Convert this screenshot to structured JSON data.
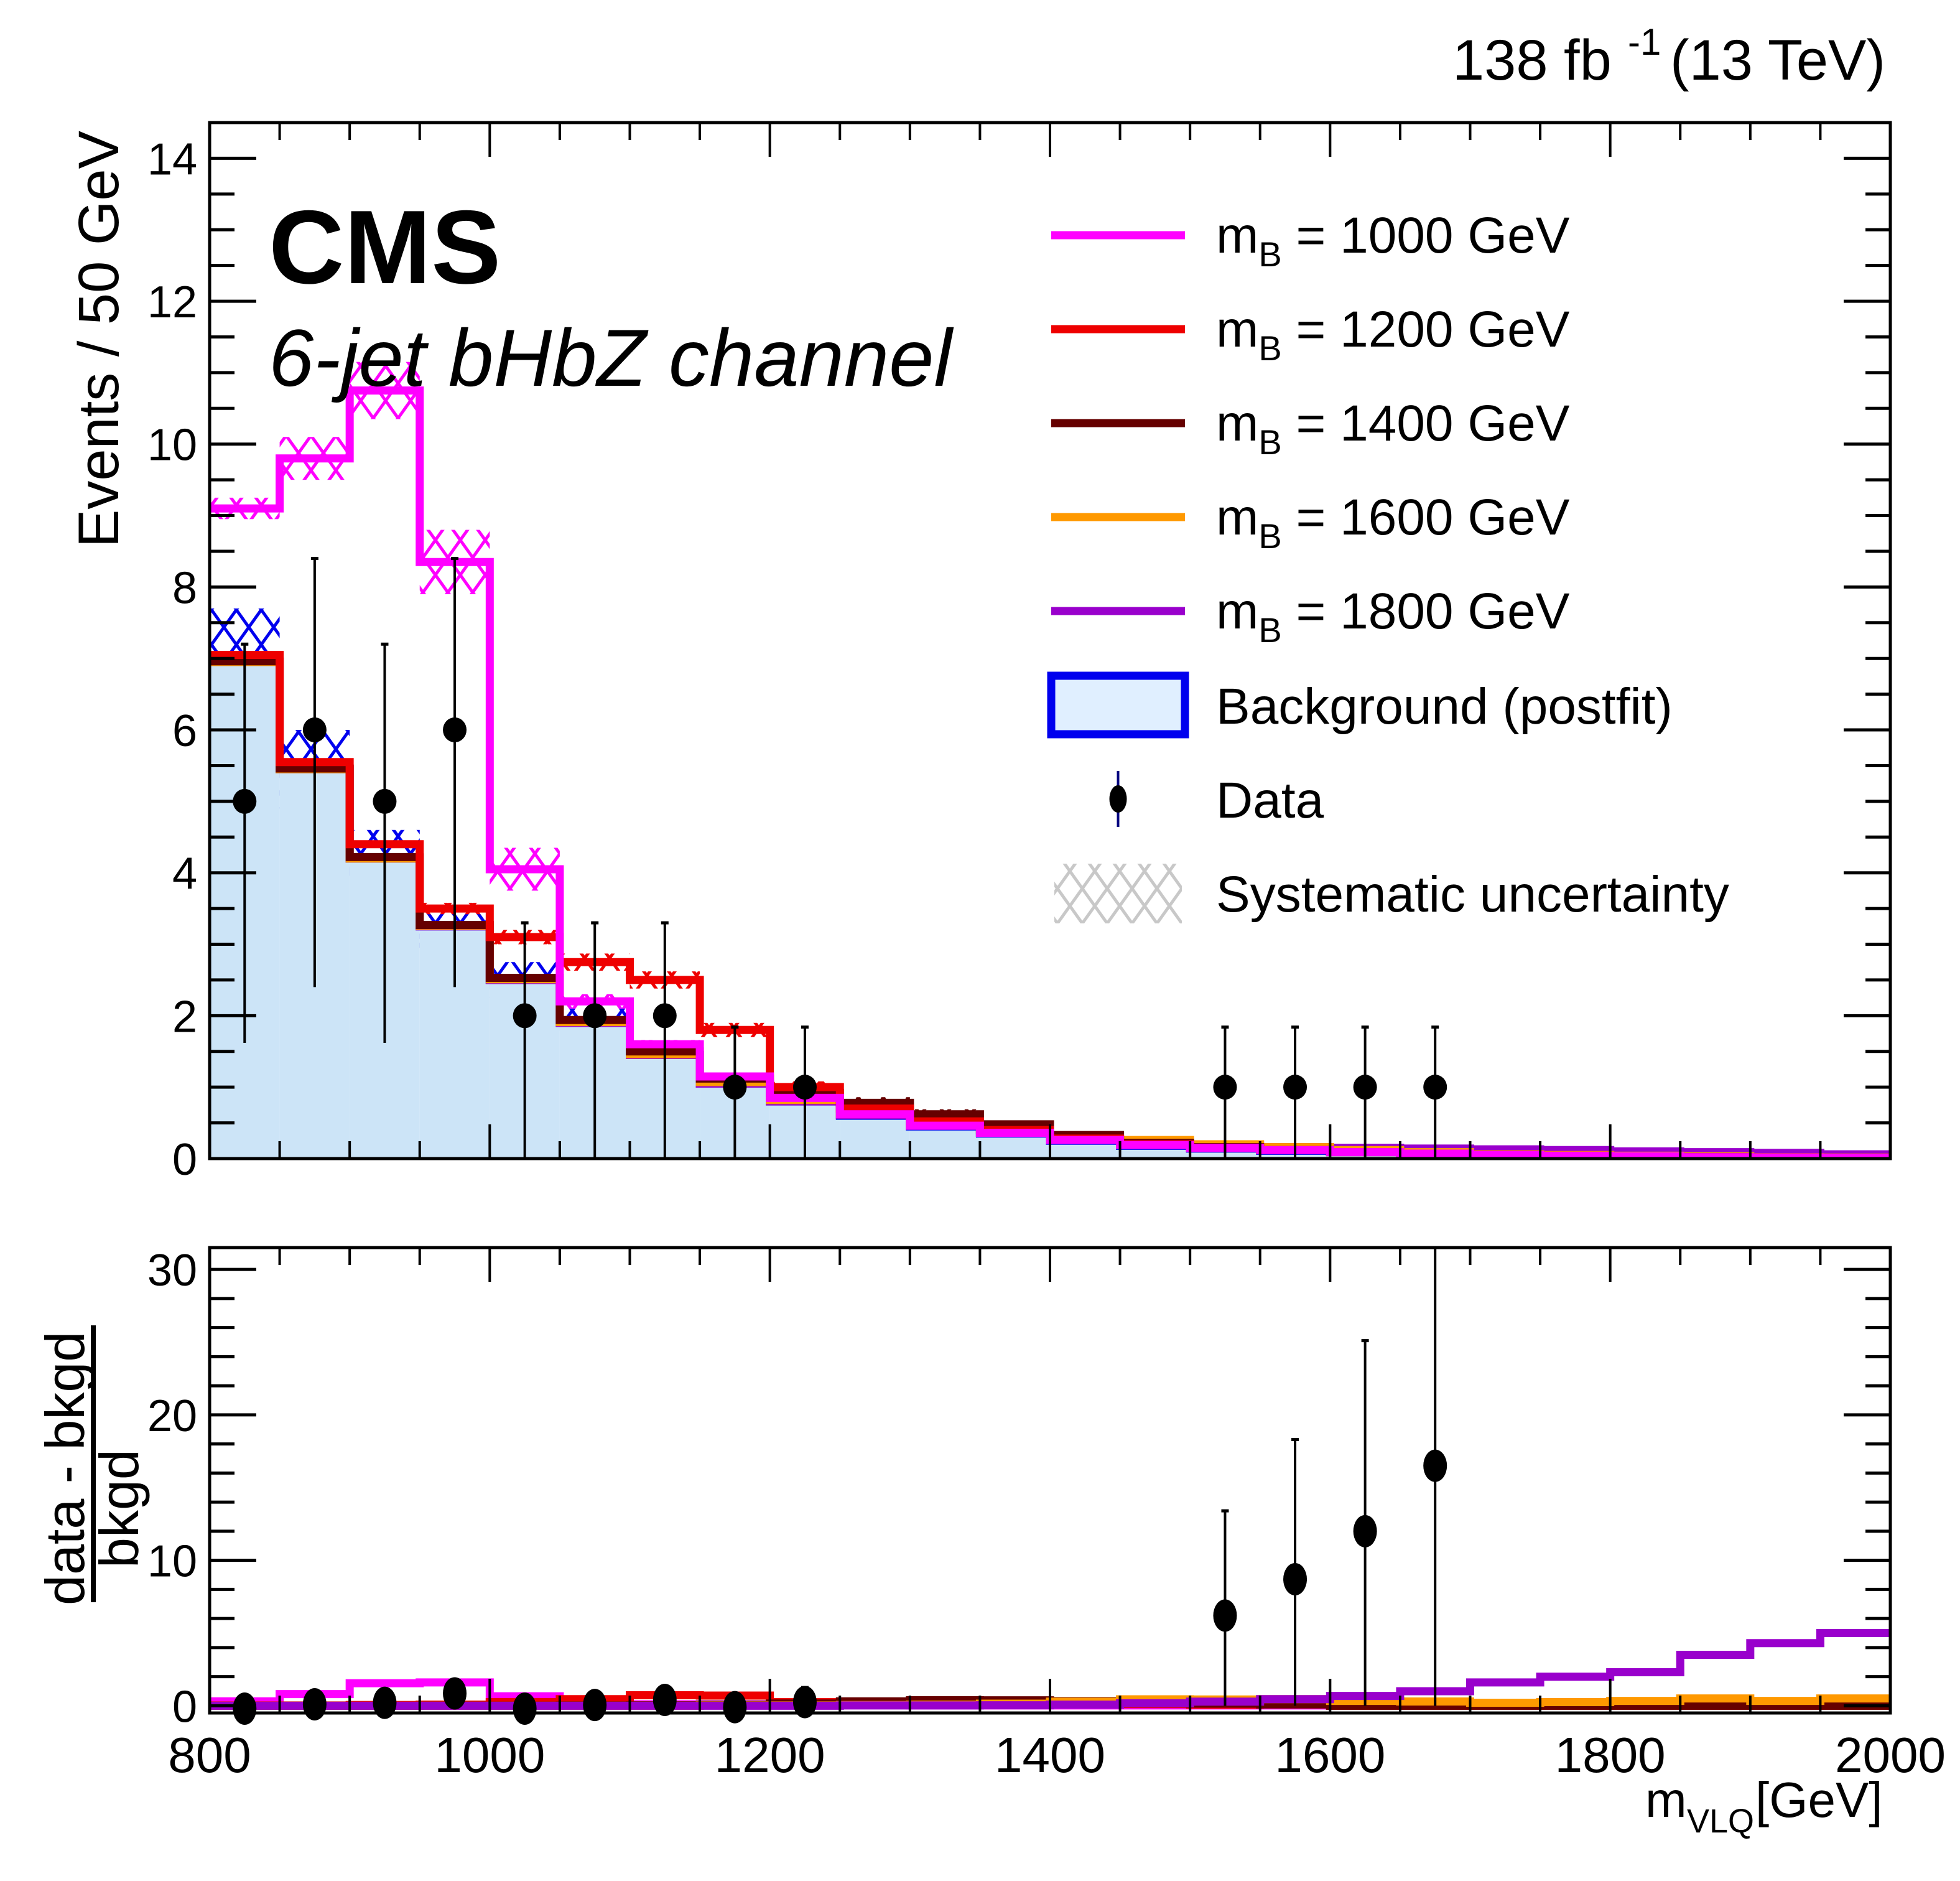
{
  "header": {
    "lumi_label": "138 fb",
    "lumi_exp": "-1",
    "energy_label": "(13 TeV)"
  },
  "annotations": {
    "experiment": "CMS",
    "channel": "6-jet bHbZ channel"
  },
  "colors": {
    "background_fill": "#cce4f7",
    "background_line": "#0000ee",
    "data": "#000000",
    "syst_legend": "#c8c8c8",
    "m1000": "#ff00ff",
    "m1200": "#ee0000",
    "m1400": "#660000",
    "m1600": "#ff9900",
    "m1800": "#9900cc"
  },
  "legend": {
    "placement": "top-right",
    "entries": [
      {
        "key": "m1000",
        "type": "line",
        "prefix": "m",
        "sub": "B",
        "text": " = 1000 GeV"
      },
      {
        "key": "m1200",
        "type": "line",
        "prefix": "m",
        "sub": "B",
        "text": " = 1200 GeV"
      },
      {
        "key": "m1400",
        "type": "line",
        "prefix": "m",
        "sub": "B",
        "text": " = 1400 GeV"
      },
      {
        "key": "m1600",
        "type": "line",
        "prefix": "m",
        "sub": "B",
        "text": " = 1600 GeV"
      },
      {
        "key": "m1800",
        "type": "line",
        "prefix": "m",
        "sub": "B",
        "text": " = 1800 GeV"
      },
      {
        "key": "background",
        "type": "box",
        "text": "Background (postfit)"
      },
      {
        "key": "data",
        "type": "marker",
        "text": "Data"
      },
      {
        "key": "syst",
        "type": "hatch",
        "text": "Systematic uncertainty"
      }
    ]
  },
  "chart_data": [
    {
      "type": "bar",
      "panel": "main",
      "title": "",
      "xlabel": "",
      "ylabel": "Events / 50 GeV",
      "xlim": [
        800,
        2000
      ],
      "ylim": [
        0,
        14.5
      ],
      "bin_width": 50,
      "bin_edges_start": 800,
      "x_ticks": [
        800,
        1000,
        1200,
        1400,
        1600,
        1800,
        2000
      ],
      "y_ticks": [
        0,
        2,
        4,
        6,
        8,
        10,
        12,
        14
      ],
      "y_tick_labels": [
        "0",
        "2",
        "4",
        "6",
        "8",
        "10",
        "12",
        "14"
      ],
      "background": {
        "name": "Background (postfit)",
        "values": [
          6.95,
          5.45,
          4.2,
          3.25,
          2.5,
          1.9,
          1.45,
          1.05,
          0.8,
          0.6,
          0.45,
          0.35,
          0.25,
          0.18,
          0.14,
          0.11,
          0.09,
          0.07,
          0.05,
          0.04,
          0.03,
          0.02,
          0.015,
          0.01
        ],
        "syst_unc": [
          0.75,
          0.55,
          0.4,
          0.3,
          0.25,
          0.2,
          0.15,
          0.1,
          0.08,
          0.06,
          0.05,
          0.04,
          0.03,
          0.02,
          0.02,
          0.02,
          0.01,
          0.01,
          0.01,
          0.01,
          0.01,
          0.01,
          0.01,
          0.01
        ]
      },
      "series": [
        {
          "name": "m_B = 1000 GeV",
          "key": "m1000",
          "values": [
            9.1,
            9.8,
            10.75,
            8.35,
            4.05,
            2.2,
            1.6,
            1.15,
            0.85,
            0.62,
            0.46,
            0.36,
            0.26,
            0.19,
            0.15,
            0.12,
            0.09,
            0.07,
            0.05,
            0.04,
            0.03,
            0.02,
            0.015,
            0.01
          ],
          "syst_unc": [
            0.15,
            0.3,
            0.4,
            0.45,
            0.3,
            0.1,
            0.06,
            0.04,
            0.03,
            0.02,
            0.02,
            0.02,
            0.01,
            0.01,
            0.01,
            0.01,
            0.01,
            0.01,
            0.01,
            0.01,
            0.01,
            0.01,
            0.01,
            0.01
          ]
        },
        {
          "name": "m_B = 1200 GeV",
          "key": "m1200",
          "values": [
            7.05,
            5.55,
            4.4,
            3.5,
            3.1,
            2.75,
            2.5,
            1.8,
            1.0,
            0.7,
            0.52,
            0.4,
            0.28,
            0.2,
            0.15,
            0.12,
            0.09,
            0.07,
            0.05,
            0.04,
            0.03,
            0.02,
            0.015,
            0.01
          ],
          "syst_unc": [
            0.05,
            0.05,
            0.05,
            0.08,
            0.1,
            0.12,
            0.12,
            0.1,
            0.08,
            0.05,
            0.03,
            0.02,
            0.02,
            0.01,
            0.01,
            0.01,
            0.01,
            0.01,
            0.01,
            0.01,
            0.01,
            0.01,
            0.01,
            0.01
          ]
        },
        {
          "name": "m_B = 1400 GeV",
          "key": "m1400",
          "values": [
            6.96,
            5.46,
            4.22,
            3.27,
            2.53,
            1.94,
            1.5,
            1.12,
            0.92,
            0.78,
            0.62,
            0.48,
            0.33,
            0.22,
            0.16,
            0.12,
            0.09,
            0.07,
            0.05,
            0.04,
            0.03,
            0.02,
            0.015,
            0.01
          ],
          "syst_unc": [
            0.02,
            0.02,
            0.02,
            0.02,
            0.03,
            0.04,
            0.05,
            0.06,
            0.07,
            0.08,
            0.07,
            0.05,
            0.04,
            0.02,
            0.02,
            0.01,
            0.01,
            0.01,
            0.01,
            0.01,
            0.01,
            0.01,
            0.01,
            0.01
          ]
        },
        {
          "name": "m_B = 1600 GeV",
          "key": "m1600",
          "values": [
            6.95,
            5.45,
            4.2,
            3.26,
            2.51,
            1.91,
            1.46,
            1.07,
            0.82,
            0.63,
            0.49,
            0.4,
            0.32,
            0.26,
            0.2,
            0.16,
            0.12,
            0.09,
            0.06,
            0.05,
            0.04,
            0.03,
            0.02,
            0.015
          ],
          "syst_unc": [
            0.01,
            0.01,
            0.01,
            0.01,
            0.01,
            0.01,
            0.02,
            0.02,
            0.02,
            0.03,
            0.03,
            0.03,
            0.04,
            0.04,
            0.03,
            0.03,
            0.02,
            0.02,
            0.01,
            0.01,
            0.01,
            0.01,
            0.01,
            0.01
          ]
        },
        {
          "name": "m_B = 1800 GeV",
          "key": "m1800",
          "values": [
            6.95,
            5.45,
            4.2,
            3.25,
            2.5,
            1.9,
            1.45,
            1.05,
            0.8,
            0.61,
            0.46,
            0.36,
            0.27,
            0.21,
            0.18,
            0.16,
            0.15,
            0.14,
            0.13,
            0.12,
            0.1,
            0.09,
            0.08,
            0.06
          ],
          "syst_unc": [
            0.01,
            0.01,
            0.01,
            0.01,
            0.01,
            0.01,
            0.01,
            0.01,
            0.01,
            0.01,
            0.02,
            0.03,
            0.03,
            0.04,
            0.04,
            0.04,
            0.04,
            0.04,
            0.04,
            0.04,
            0.04,
            0.04,
            0.04,
            0.04
          ]
        }
      ],
      "data": {
        "name": "Data",
        "x": [
          825,
          875,
          925,
          975,
          1025,
          1075,
          1125,
          1175,
          1225,
          1525,
          1575,
          1625,
          1675
        ],
        "y": [
          5,
          6,
          5,
          6,
          2,
          2,
          2,
          1,
          1,
          1,
          1,
          1,
          1
        ],
        "err_low": [
          3.38,
          3.6,
          3.38,
          3.6,
          1.98,
          1.98,
          1.98,
          1.0,
          1.0,
          1.0,
          1.0,
          1.0,
          1.0
        ],
        "err_high": [
          2.2,
          2.4,
          2.2,
          2.4,
          1.3,
          1.3,
          1.3,
          0.84,
          0.84,
          0.84,
          0.84,
          0.84,
          0.84
        ]
      }
    },
    {
      "type": "line",
      "panel": "ratio",
      "xlabel": "m_VLQ [GeV]",
      "xlabel_main": "m",
      "xlabel_sub": "VLQ",
      "xlabel_unit": " [GeV]",
      "ylabel_num": "data - bkgd",
      "ylabel_den": "bkgd",
      "xlim": [
        800,
        2000
      ],
      "ylim": [
        -0.5,
        31.5
      ],
      "x_ticks": [
        800,
        1000,
        1200,
        1400,
        1600,
        1800,
        2000
      ],
      "x_tick_labels": [
        "800",
        "1000",
        "1200",
        "1400",
        "1600",
        "1800",
        "2000"
      ],
      "y_ticks": [
        0,
        10,
        20,
        30
      ],
      "y_tick_labels": [
        "0",
        "10",
        "20",
        "30"
      ],
      "series": [
        {
          "key": "m1000",
          "values": [
            0.3,
            0.8,
            1.55,
            1.6,
            0.65,
            0.15,
            0.1,
            0.1,
            0.06,
            0.03,
            0.02,
            0.02,
            0.02,
            0.02,
            0.02,
            0.02,
            0.0,
            0.0,
            0.0,
            0.0,
            0.0,
            0.0,
            0.0,
            0.0
          ]
        },
        {
          "key": "m1200",
          "values": [
            0.02,
            0.02,
            0.05,
            0.08,
            0.25,
            0.45,
            0.72,
            0.7,
            0.25,
            0.17,
            0.15,
            0.14,
            0.12,
            0.11,
            0.07,
            0.09,
            0.0,
            0.0,
            0.0,
            0.0,
            0.0,
            0.0,
            0.0,
            0.0
          ]
        },
        {
          "key": "m1400",
          "values": [
            0.0,
            0.0,
            0.0,
            0.01,
            0.01,
            0.02,
            0.03,
            0.07,
            0.15,
            0.3,
            0.38,
            0.37,
            0.32,
            0.22,
            0.14,
            0.09,
            0.0,
            0.0,
            0.0,
            0.0,
            0.0,
            0.0,
            0.0,
            0.0
          ]
        },
        {
          "key": "m1600",
          "values": [
            0.0,
            0.0,
            0.0,
            0.0,
            0.0,
            0.0,
            0.0,
            0.02,
            0.02,
            0.05,
            0.08,
            0.14,
            0.28,
            0.44,
            0.43,
            0.45,
            0.33,
            0.29,
            0.2,
            0.25,
            0.33,
            0.5,
            0.33,
            0.5
          ]
        },
        {
          "key": "m1800",
          "values": [
            0.0,
            0.0,
            0.0,
            0.0,
            0.0,
            0.0,
            0.0,
            0.0,
            0.0,
            0.02,
            0.02,
            0.03,
            0.08,
            0.17,
            0.28,
            0.45,
            0.67,
            1.0,
            1.6,
            2.0,
            2.3,
            3.5,
            4.3,
            5.0
          ]
        }
      ],
      "data": {
        "x": [
          825,
          875,
          925,
          975,
          1025,
          1075,
          1125,
          1175,
          1225,
          1525,
          1575,
          1625,
          1675
        ],
        "y": [
          -0.2,
          0.1,
          0.2,
          0.85,
          -0.2,
          0.05,
          0.4,
          -0.1,
          0.25,
          6.2,
          8.7,
          12.0,
          16.5
        ],
        "err_low": [
          0.4,
          0.3,
          0.3,
          0.3,
          0.3,
          0.3,
          0.3,
          0.3,
          0.3,
          6.2,
          8.7,
          12.0,
          16.5
        ],
        "err_high": [
          0.3,
          0.3,
          0.3,
          0.3,
          0.3,
          0.3,
          0.8,
          0.3,
          1.0,
          7.2,
          9.6,
          13.1,
          16.0
        ]
      }
    }
  ]
}
